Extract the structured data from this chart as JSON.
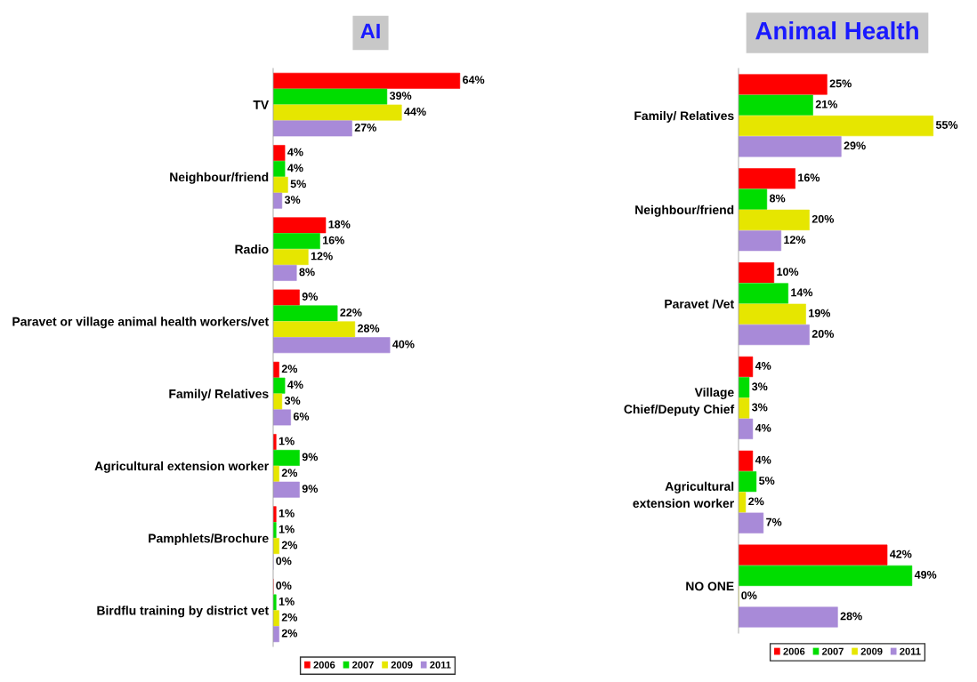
{
  "chart_data": [
    {
      "type": "bar",
      "orientation": "horizontal",
      "title": "AI",
      "tick_labels": "y",
      "grid": false,
      "legend": "bottom",
      "categories": [
        "TV",
        "Neighbour/friend",
        "Radio",
        "Paravet or village animal health workers/vet",
        "Family/ Relatives",
        "Agricultural extension worker",
        "Pamphlets/Brochure",
        "Birdflu training by district vet"
      ],
      "series": [
        {
          "name": "2006",
          "color": "#ff0000",
          "values": [
            64,
            4,
            18,
            9,
            2,
            1,
            1,
            0
          ],
          "value_labels": [
            "64%",
            "4%",
            "18%",
            "9%",
            "2%",
            "1%",
            "1%",
            "0%"
          ]
        },
        {
          "name": "2007",
          "color": "#00dd00",
          "values": [
            39,
            4,
            16,
            22,
            4,
            9,
            1,
            1
          ],
          "value_labels": [
            "39%",
            "4%",
            "16%",
            "22%",
            "4%",
            "9%",
            "1%",
            "1%"
          ]
        },
        {
          "name": "2009",
          "color": "#e6e600",
          "values": [
            44,
            5,
            12,
            28,
            3,
            2,
            2,
            2
          ],
          "value_labels": [
            "44%",
            "5%",
            "12%",
            "28%",
            "3%",
            "2%",
            "2%",
            "2%"
          ]
        },
        {
          "name": "2011",
          "color": "#a88ad8",
          "values": [
            27,
            3,
            8,
            40,
            6,
            9,
            0,
            2
          ],
          "value_labels": [
            "27%",
            "3%",
            "8%",
            "40%",
            "6%",
            "9%",
            "0%",
            "2%"
          ]
        }
      ]
    },
    {
      "type": "bar",
      "orientation": "horizontal",
      "title": "Animal Health",
      "tick_labels": "y",
      "grid": false,
      "legend": "bottom",
      "categories": [
        "Family/ Relatives",
        "Neighbour/friend",
        "Paravet /Vet",
        "Village Chief/Deputy Chief",
        "Agricultural extension worker",
        "NO ONE"
      ],
      "series": [
        {
          "name": "2006",
          "color": "#ff0000",
          "values": [
            25,
            16,
            10,
            4,
            4,
            42
          ],
          "value_labels": [
            "25%",
            "16%",
            "10%",
            "4%",
            "4%",
            "42%"
          ]
        },
        {
          "name": "2007",
          "color": "#00dd00",
          "values": [
            21,
            8,
            14,
            3,
            5,
            49
          ],
          "value_labels": [
            "21%",
            "8%",
            "14%",
            "3%",
            "5%",
            "49%"
          ]
        },
        {
          "name": "2009",
          "color": "#e6e600",
          "values": [
            55,
            20,
            19,
            3,
            2,
            0
          ],
          "value_labels": [
            "55%",
            "20%",
            "19%",
            "3%",
            "2%",
            "0%"
          ]
        },
        {
          "name": "2011",
          "color": "#a88ad8",
          "values": [
            29,
            12,
            20,
            4,
            7,
            28
          ],
          "value_labels": [
            "29%",
            "12%",
            "20%",
            "4%",
            "7%",
            "28%"
          ]
        }
      ]
    }
  ]
}
